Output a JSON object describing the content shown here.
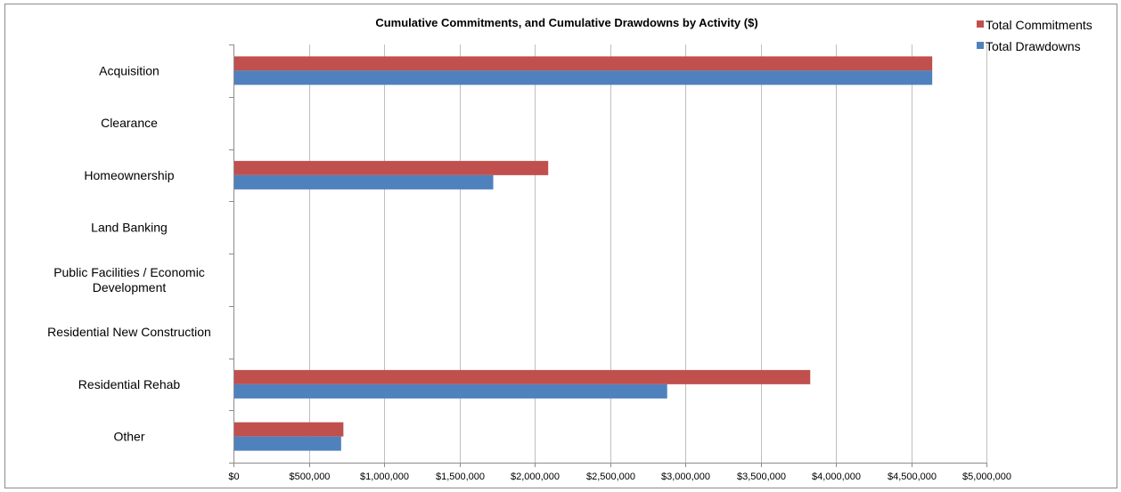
{
  "chart_data": {
    "type": "bar",
    "orientation": "horizontal",
    "title": "Cumulative Commitments, and Cumulative Drawdowns by Activity ($)",
    "xlabel": "",
    "ylabel": "",
    "categories": [
      "Acquisition",
      "Clearance",
      "Homeownership",
      "Land Banking",
      "Public Facilities / Economic Development",
      "Residential New Construction",
      "Residential Rehab",
      "Other"
    ],
    "series": [
      {
        "name": "Total Commitments",
        "color": "#c0504d",
        "values": [
          4640000,
          0,
          2090000,
          0,
          0,
          0,
          3830000,
          730000
        ]
      },
      {
        "name": "Total Drawdowns",
        "color": "#4f81bd",
        "values": [
          4640000,
          0,
          1725000,
          0,
          0,
          0,
          2880000,
          715000
        ]
      }
    ],
    "xlim": [
      0,
      5000000
    ],
    "x_ticks": [
      0,
      500000,
      1000000,
      1500000,
      2000000,
      2500000,
      3000000,
      3500000,
      4000000,
      4500000,
      5000000
    ],
    "x_tick_labels": [
      "$0",
      "$500,000",
      "$1,000,000",
      "$1,500,000",
      "$2,000,000",
      "$2,500,000",
      "$3,000,000",
      "$3,500,000",
      "$4,000,000",
      "$4,500,000",
      "$5,000,000"
    ],
    "category_labels": [
      [
        "Acquisition"
      ],
      [
        "Clearance"
      ],
      [
        "Homeownership"
      ],
      [
        "Land Banking"
      ],
      [
        "Public Facilities / Economic",
        "Development"
      ],
      [
        "Residential New Construction"
      ],
      [
        "Residential Rehab"
      ],
      [
        "Other"
      ]
    ],
    "grid": "vertical",
    "legend": {
      "position": "top-right",
      "entries": [
        "Total Commitments",
        "Total Drawdowns"
      ]
    }
  }
}
